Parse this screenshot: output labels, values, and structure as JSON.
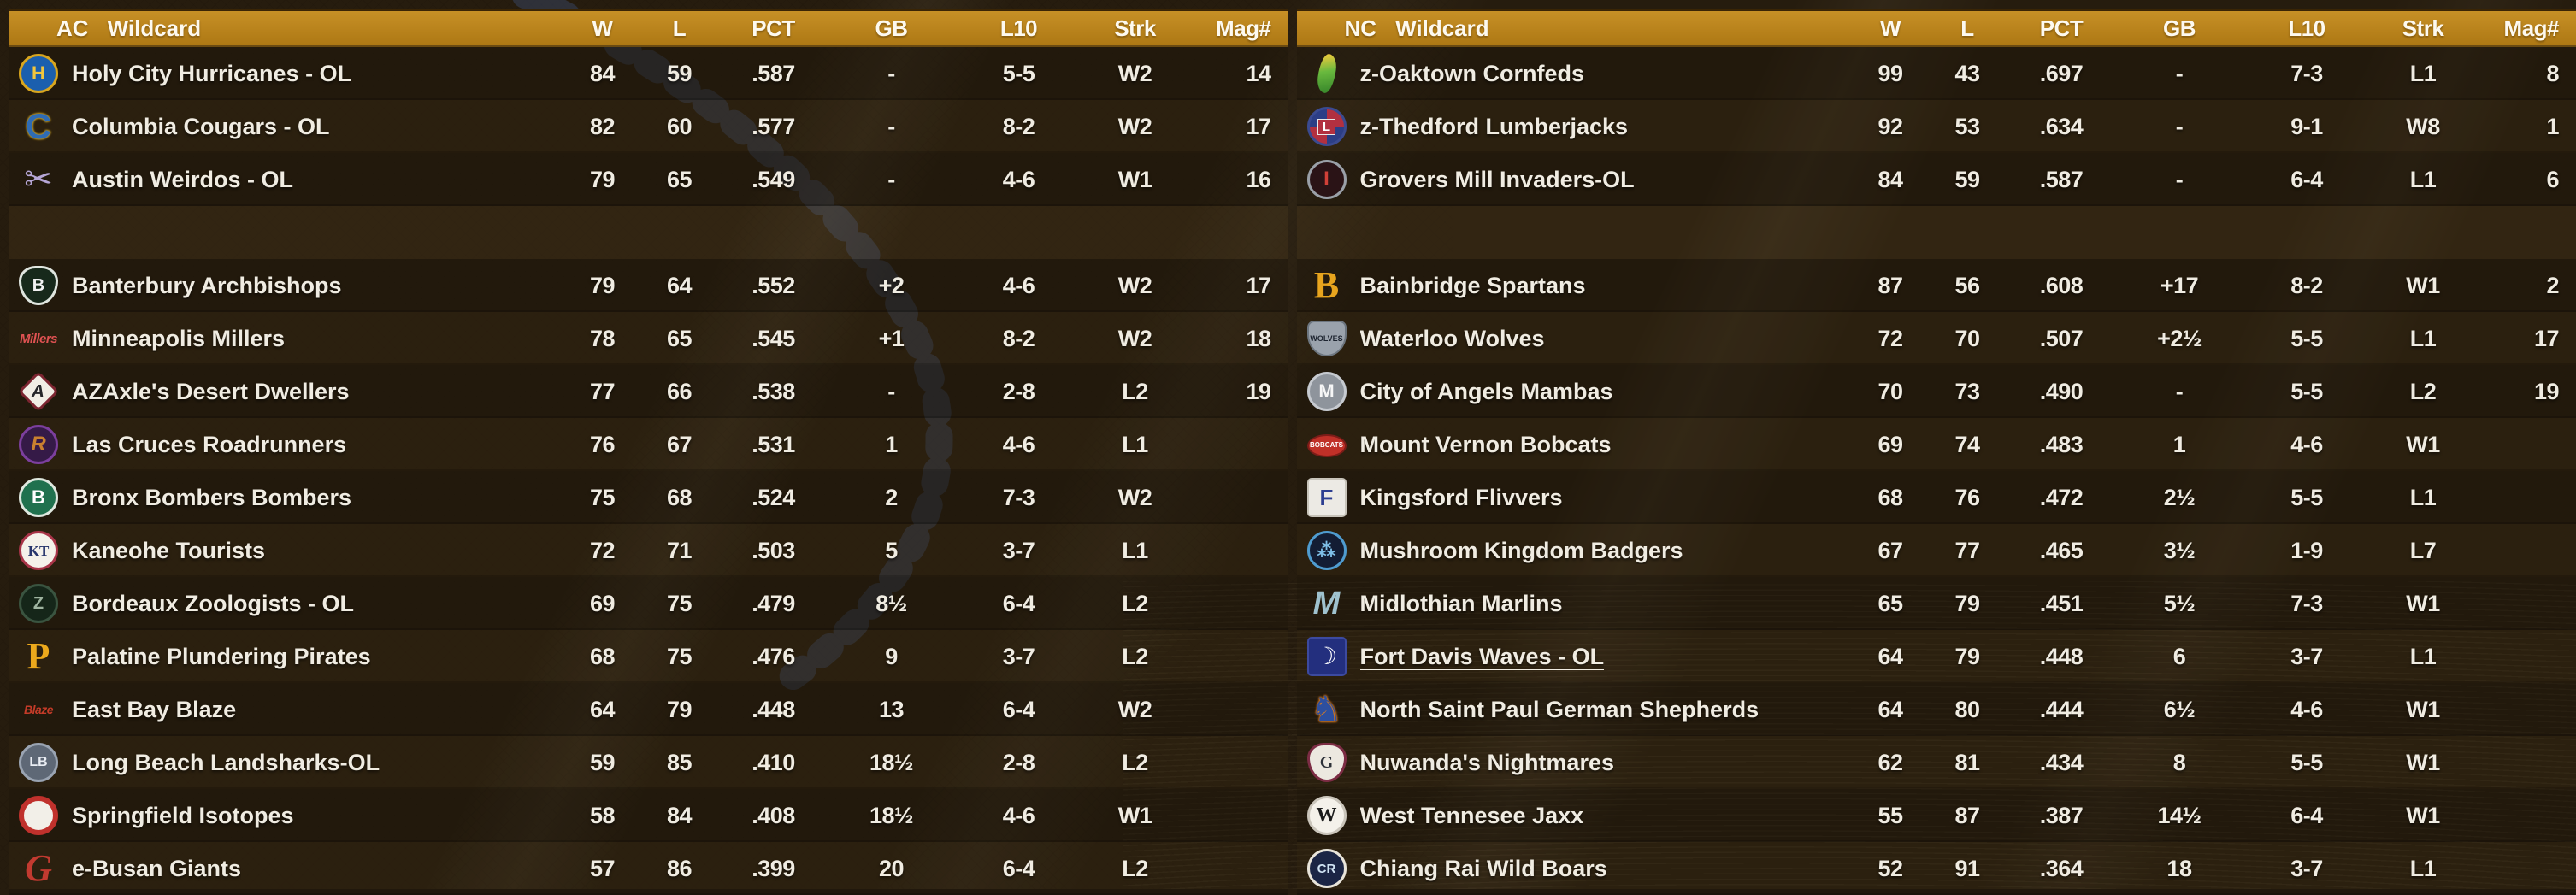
{
  "colors": {
    "header_gold": "#bd851e",
    "row_text": "#f0ece2",
    "seam_blue": "#44639f",
    "row_dark": "rgba(0,0,0,0.30)",
    "row_light": "rgba(0,0,0,0.12)"
  },
  "tables": [
    {
      "title_conference": "AC",
      "title_type": "Wildcard",
      "columns": [
        "W",
        "L",
        "PCT",
        "GB",
        "L10",
        "Strk",
        "Mag#"
      ],
      "rows": [
        {
          "name": "Holy City Hurricanes - OL",
          "w": "84",
          "l": "59",
          "pct": ".587",
          "gb": "-",
          "l10": "5-5",
          "strk": "W2",
          "mag": "14",
          "logo": {
            "icon": "holy-city-hurricanes-logo",
            "shape": "circle",
            "bg": "#1b5fae",
            "border": "#d9a61e",
            "label": "H",
            "color": "#f2c53d",
            "size": 22
          }
        },
        {
          "name": "Columbia Cougars - OL",
          "w": "82",
          "l": "60",
          "pct": ".577",
          "gb": "-",
          "l10": "8-2",
          "strk": "W2",
          "mag": "17",
          "logo": {
            "icon": "columbia-cougars-logo",
            "shape": "letter",
            "label": "C",
            "color": "#2f6cb4",
            "size": 42,
            "outline": "#c9a22c"
          }
        },
        {
          "name": "Austin Weirdos - OL",
          "w": "79",
          "l": "65",
          "pct": ".549",
          "gb": "-",
          "l10": "4-6",
          "strk": "W1",
          "mag": "16",
          "logo": {
            "icon": "austin-weirdos-logo",
            "shape": "letter",
            "label": "✂",
            "color": "#b6a6d6",
            "size": 40
          }
        },
        {
          "name": "Banterbury Archbishops",
          "w": "79",
          "l": "64",
          "pct": ".552",
          "gb": "+2",
          "l10": "4-6",
          "strk": "W2",
          "mag": "17",
          "spacer_before": true,
          "logo": {
            "icon": "banterbury-archbishops-logo",
            "shape": "shield",
            "bg": "#17291b",
            "border": "#dfe5df",
            "label": "B",
            "color": "#f2f2f2",
            "size": 20
          }
        },
        {
          "name": "Minneapolis Millers",
          "w": "78",
          "l": "65",
          "pct": ".545",
          "gb": "+1",
          "l10": "8-2",
          "strk": "W2",
          "mag": "18",
          "logo": {
            "icon": "minneapolis-millers-logo",
            "shape": "script",
            "label": "Millers",
            "color": "#e05252",
            "size": 15
          }
        },
        {
          "name": "AZAxle's Desert Dwellers",
          "w": "77",
          "l": "66",
          "pct": ".538",
          "gb": "-",
          "l10": "2-8",
          "strk": "L2",
          "mag": "19",
          "logo": {
            "icon": "azaxle-desert-dwellers-logo",
            "shape": "diamond",
            "bg": "#f1ede5",
            "border": "#7c2430",
            "label": "A",
            "color": "#26262a",
            "size": 21,
            "italic": true
          }
        },
        {
          "name": "Las Cruces Roadrunners",
          "w": "76",
          "l": "67",
          "pct": ".531",
          "gb": "1",
          "l10": "4-6",
          "strk": "L1",
          "mag": "",
          "logo": {
            "icon": "las-cruces-roadrunners-logo",
            "shape": "circle",
            "bg": "#351a47",
            "border": "#7c3f9e",
            "label": "R",
            "color": "#c9802f",
            "size": 24,
            "italic": true
          }
        },
        {
          "name": "Bronx Bombers Bombers",
          "w": "75",
          "l": "68",
          "pct": ".524",
          "gb": "2",
          "l10": "7-3",
          "strk": "W2",
          "mag": "",
          "logo": {
            "icon": "bronx-bombers-logo",
            "shape": "circle",
            "bg": "#20714e",
            "border": "#dfe8df",
            "label": "B",
            "color": "#ffffff",
            "size": 22
          }
        },
        {
          "name": "Kaneohe Tourists",
          "w": "72",
          "l": "71",
          "pct": ".503",
          "gb": "5",
          "l10": "3-7",
          "strk": "L1",
          "mag": "",
          "logo": {
            "icon": "kaneohe-tourists-logo",
            "shape": "circle",
            "bg": "#f4f1ea",
            "border": "#a83448",
            "label": "KT",
            "color": "#27356c",
            "size": 17,
            "serif": true
          }
        },
        {
          "name": "Bordeaux Zoologists - OL",
          "w": "69",
          "l": "75",
          "pct": ".479",
          "gb": "8½",
          "l10": "6-4",
          "strk": "L2",
          "mag": "",
          "logo": {
            "icon": "bordeaux-zoologists-logo",
            "shape": "circle",
            "bg": "#152619",
            "border": "#3a5440",
            "label": "Z",
            "color": "#9fb4a0",
            "size": 20
          }
        },
        {
          "name": "Palatine Plundering Pirates",
          "w": "68",
          "l": "75",
          "pct": ".476",
          "gb": "9",
          "l10": "3-7",
          "strk": "L2",
          "mag": "",
          "logo": {
            "icon": "palatine-pirates-logo",
            "shape": "letter",
            "label": "P",
            "color": "#eca91c",
            "size": 44,
            "serif": true
          }
        },
        {
          "name": "East Bay Blaze",
          "w": "64",
          "l": "79",
          "pct": ".448",
          "gb": "13",
          "l10": "6-4",
          "strk": "W2",
          "mag": "",
          "logo": {
            "icon": "east-bay-blaze-logo",
            "shape": "script",
            "label": "Blaze",
            "color": "#c43b28",
            "size": 14
          }
        },
        {
          "name": "Long Beach Landsharks-OL",
          "w": "59",
          "l": "85",
          "pct": ".410",
          "gb": "18½",
          "l10": "2-8",
          "strk": "L2",
          "mag": "",
          "logo": {
            "icon": "long-beach-landsharks-logo",
            "shape": "circle",
            "bg": "#5e6876",
            "border": "#9aa4b2",
            "label": "LB",
            "color": "#e9edf3",
            "size": 16
          }
        },
        {
          "name": "Springfield Isotopes",
          "w": "58",
          "l": "84",
          "pct": ".408",
          "gb": "18½",
          "l10": "4-6",
          "strk": "W1",
          "mag": "",
          "logo": {
            "icon": "springfield-isotopes-logo",
            "shape": "circle",
            "bg": "#f2efe8",
            "border": "#c0312c",
            "label": "",
            "color": "#c0312c",
            "size": 16,
            "thick": true
          }
        },
        {
          "name": "e-Busan Giants",
          "w": "57",
          "l": "86",
          "pct": ".399",
          "gb": "20",
          "l10": "6-4",
          "strk": "L2",
          "mag": "",
          "logo": {
            "icon": "e-busan-giants-logo",
            "shape": "letter",
            "label": "G",
            "color": "#c23a30",
            "size": 44,
            "italic": true,
            "serif": true
          }
        }
      ]
    },
    {
      "title_conference": "NC",
      "title_type": "Wildcard",
      "columns": [
        "W",
        "L",
        "PCT",
        "GB",
        "L10",
        "Strk",
        "Mag#"
      ],
      "rows": [
        {
          "name": "z-Oaktown Cornfeds",
          "w": "99",
          "l": "43",
          "pct": ".697",
          "gb": "-",
          "l10": "7-3",
          "strk": "L1",
          "mag": "8",
          "logo": {
            "icon": "oaktown-cornfeds-logo",
            "shape": "leaf",
            "label": "",
            "color": "",
            "size": 0
          }
        },
        {
          "name": "z-Thedford Lumberjacks",
          "w": "92",
          "l": "53",
          "pct": ".634",
          "gb": "-",
          "l10": "9-1",
          "strk": "W8",
          "mag": "1",
          "logo": {
            "icon": "thedford-lumberjacks-logo",
            "shape": "circle",
            "bg": "repeating-conic-gradient(#b23040 0 25%, #2c3e86 0 50%)",
            "border": "#3a4a90",
            "label": "L",
            "color": "#ffffff",
            "size": 15,
            "labelBg": "#b23040"
          }
        },
        {
          "name": "Grovers Mill Invaders-OL",
          "w": "84",
          "l": "59",
          "pct": ".587",
          "gb": "-",
          "l10": "6-4",
          "strk": "L1",
          "mag": "6",
          "logo": {
            "icon": "grovers-mill-invaders-logo",
            "shape": "circle",
            "bg": "#2a1316",
            "border": "#9aa0a8",
            "label": "I",
            "color": "#d04038",
            "size": 24
          }
        },
        {
          "name": "Bainbridge Spartans",
          "w": "87",
          "l": "56",
          "pct": ".608",
          "gb": "+17",
          "l10": "8-2",
          "strk": "W1",
          "mag": "2",
          "spacer_before": true,
          "logo": {
            "icon": "bainbridge-spartans-logo",
            "shape": "letter",
            "label": "B",
            "color": "#e8a51e",
            "size": 44,
            "serif": true
          }
        },
        {
          "name": "Waterloo Wolves",
          "w": "72",
          "l": "70",
          "pct": ".507",
          "gb": "+2½",
          "l10": "5-5",
          "strk": "L1",
          "mag": "17",
          "logo": {
            "icon": "waterloo-wolves-logo",
            "shape": "badge",
            "bg": "#9aa2ac",
            "border": "#6d7680",
            "label": "WOLVES",
            "color": "#1d2430",
            "size": 9
          }
        },
        {
          "name": "City of Angels Mambas",
          "w": "70",
          "l": "73",
          "pct": ".490",
          "gb": "-",
          "l10": "5-5",
          "strk": "L2",
          "mag": "19",
          "logo": {
            "icon": "city-of-angels-mambas-logo",
            "shape": "circle",
            "bg": "#8e949c",
            "border": "#c6cad0",
            "label": "M",
            "color": "#f6f6f6",
            "size": 22
          }
        },
        {
          "name": "Mount Vernon Bobcats",
          "w": "69",
          "l": "74",
          "pct": ".483",
          "gb": "1",
          "l10": "4-6",
          "strk": "W1",
          "mag": "",
          "logo": {
            "icon": "mount-vernon-bobcats-logo",
            "shape": "ellipse",
            "bg": "#c03028",
            "border": "#7c1c18",
            "label": "BOBCATS",
            "color": "#ffffff",
            "size": 8
          }
        },
        {
          "name": "Kingsford Flivvers",
          "w": "68",
          "l": "76",
          "pct": ".472",
          "gb": "2½",
          "l10": "5-5",
          "strk": "L1",
          "mag": "",
          "logo": {
            "icon": "kingsford-flivvers-logo",
            "shape": "square",
            "bg": "#eceae4",
            "border": "#c8c4ba",
            "label": "F",
            "color": "#2c3e90",
            "size": 26
          }
        },
        {
          "name": "Mushroom Kingdom Badgers",
          "w": "67",
          "l": "77",
          "pct": ".465",
          "gb": "3½",
          "l10": "1-9",
          "strk": "L7",
          "mag": "",
          "logo": {
            "icon": "mushroom-kingdom-badgers-logo",
            "shape": "circle",
            "bg": "#131d34",
            "border": "#4f9cd0",
            "label": "⁂",
            "color": "#7fc0e8",
            "size": 22
          }
        },
        {
          "name": "Midlothian Marlins",
          "w": "65",
          "l": "79",
          "pct": ".451",
          "gb": "5½",
          "l10": "7-3",
          "strk": "W1",
          "mag": "",
          "logo": {
            "icon": "midlothian-marlins-logo",
            "shape": "letter",
            "label": "M",
            "color": "#9fc2cf",
            "size": 38,
            "italic": true
          }
        },
        {
          "name": "Fort Davis Waves - OL",
          "w": "64",
          "l": "79",
          "pct": ".448",
          "gb": "6",
          "l10": "3-7",
          "strk": "L1",
          "mag": "",
          "user_team": true,
          "logo": {
            "icon": "fort-davis-waves-logo",
            "shape": "square",
            "bg": "#232f7e",
            "border": "#3c4aa0",
            "label": "☽",
            "color": "#ffffff",
            "size": 28
          }
        },
        {
          "name": "North Saint Paul German Shepherds",
          "w": "64",
          "l": "80",
          "pct": ".444",
          "gb": "6½",
          "l10": "4-6",
          "strk": "W1",
          "mag": "",
          "logo": {
            "icon": "north-saint-paul-german-shepherds-logo",
            "shape": "letter",
            "label": "♞",
            "color": "#2d4f9f",
            "size": 42,
            "outline": "#d87f28"
          }
        },
        {
          "name": "Nuwanda's Nightmares",
          "w": "62",
          "l": "81",
          "pct": ".434",
          "gb": "8",
          "l10": "5-5",
          "strk": "W1",
          "mag": "",
          "logo": {
            "icon": "nuwandas-nightmares-logo",
            "shape": "shield",
            "bg": "#ece8e0",
            "border": "#7c2c44",
            "label": "G",
            "color": "#2c3038",
            "size": 20,
            "serif": true
          }
        },
        {
          "name": "West Tennesee Jaxx",
          "w": "55",
          "l": "87",
          "pct": ".387",
          "gb": "14½",
          "l10": "6-4",
          "strk": "W1",
          "mag": "",
          "logo": {
            "icon": "west-tennesee-jaxx-logo",
            "shape": "circle",
            "bg": "#f4f1ea",
            "border": "#cac5bb",
            "label": "W",
            "color": "#1b1b1b",
            "size": 24,
            "serif": true
          }
        },
        {
          "name": "Chiang Rai Wild Boars",
          "w": "52",
          "l": "91",
          "pct": ".364",
          "gb": "18",
          "l10": "3-7",
          "strk": "L1",
          "mag": "",
          "logo": {
            "icon": "chiang-rai-wild-boars-logo",
            "shape": "circle",
            "bg": "#1b2545",
            "border": "#e8e4da",
            "label": "CR",
            "color": "#cfe2f2",
            "size": 15
          }
        }
      ]
    }
  ]
}
